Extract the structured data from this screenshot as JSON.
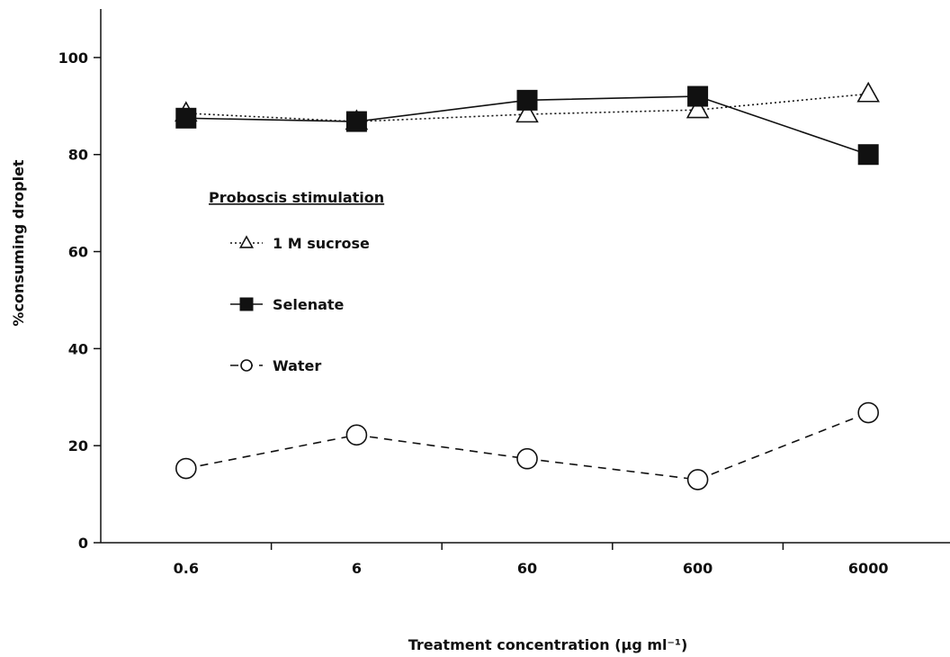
{
  "chart_data": {
    "type": "line",
    "title": "",
    "xlabel": "Treatment concentration (µg ml⁻¹)",
    "ylabel": "%consuming droplet",
    "categories": [
      "0.6",
      "6",
      "60",
      "600",
      "6000"
    ],
    "ylim": [
      0,
      110
    ],
    "yticks": [
      0,
      20,
      40,
      60,
      80,
      100
    ],
    "grid": false,
    "legend": {
      "title": "Proboscis stimulation",
      "placement": "center-left"
    },
    "series": [
      {
        "name": "1 M sucrose",
        "values": [
          88.5,
          86.8,
          88.3,
          89.2,
          92.5
        ],
        "line_style": "dotted",
        "marker": "triangle-open",
        "legend_marker": "△"
      },
      {
        "name": "Selenate",
        "values": [
          87.5,
          86.8,
          91.2,
          92.0,
          80.0
        ],
        "line_style": "solid",
        "marker": "square-filled",
        "legend_marker": "■"
      },
      {
        "name": "Water",
        "values": [
          15.3,
          22.2,
          17.3,
          13.0,
          26.8
        ],
        "line_style": "dashed",
        "marker": "circle-open",
        "legend_marker": "○"
      }
    ]
  }
}
